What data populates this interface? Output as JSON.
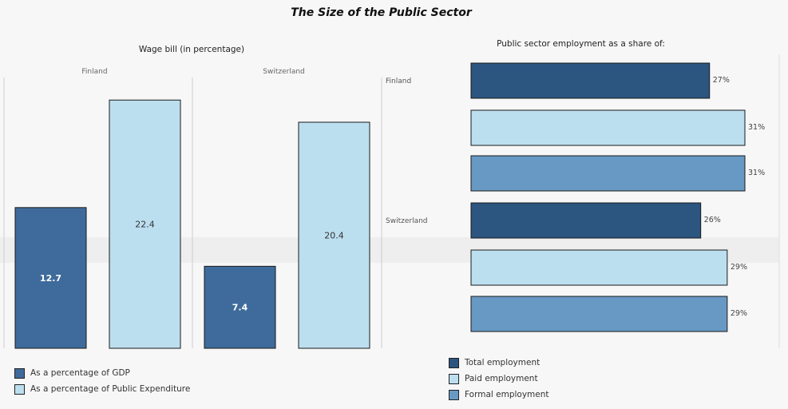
{
  "title": "The Size of the Public Sector",
  "colors": {
    "gdp": "#3e6b9b",
    "public_expenditure": "#bcdff0",
    "total_employment": "#2c5580",
    "paid_employment": "#bcdff0",
    "formal_employment": "#6899c4"
  },
  "chart_data": [
    {
      "type": "bar",
      "title": "Wage bill (in percentage)",
      "categories": [
        "Finland",
        "Switzerland"
      ],
      "series": [
        {
          "name": "As a percentage of GDP",
          "values": [
            12.7,
            7.4
          ]
        },
        {
          "name": "As a percentage of Public Expenditure",
          "values": [
            22.4,
            20.4
          ]
        }
      ],
      "ylim": [
        0,
        25
      ],
      "legend_position": "bottom-left"
    },
    {
      "type": "bar",
      "orientation": "horizontal",
      "title": "Public sector employment as a share of:",
      "categories": [
        "Finland",
        "Switzerland"
      ],
      "series": [
        {
          "name": "Total employment",
          "values": [
            27,
            26
          ],
          "labels": [
            "27%",
            "26%"
          ]
        },
        {
          "name": "Paid employment",
          "values": [
            31,
            29
          ],
          "labels": [
            "31%",
            "29%"
          ]
        },
        {
          "name": "Formal employment",
          "values": [
            31,
            29
          ],
          "labels": [
            "31%",
            "29%"
          ]
        }
      ],
      "xlim": [
        0,
        31
      ],
      "legend_position": "bottom"
    }
  ]
}
